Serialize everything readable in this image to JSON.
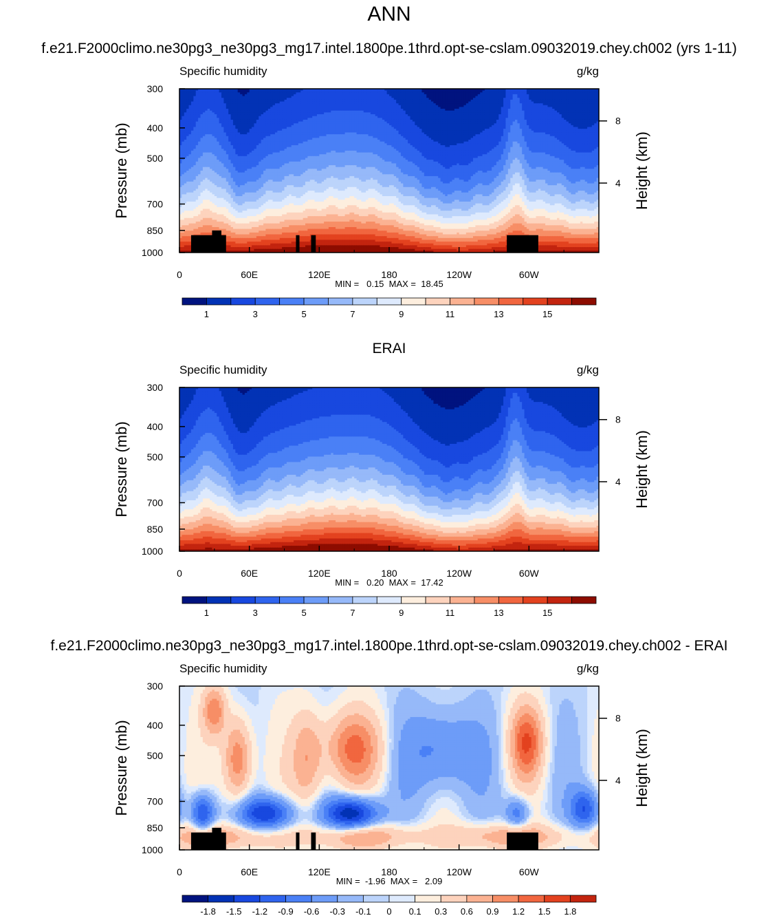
{
  "figure": {
    "title": "ANN",
    "case_title": "f.e21.F2000climo.ne30pg3_ne30pg3_mg17.intel.1800pe.1thrd.opt-se-cslam.09032019.chey.ch002 (yrs 1-11)",
    "ref_title": "ERAI",
    "diff_title": "f.e21.F2000climo.ne30pg3_ne30pg3_mg17.intel.1800pe.1thrd.opt-se-cslam.09032019.chey.ch002 - ERAI"
  },
  "chart_data": [
    {
      "type": "heatmap",
      "id": "model",
      "variable": "Specific humidity",
      "units": "g/kg",
      "ylabel": "Pressure (mb)",
      "y2label": "Height (km)",
      "ylim": [
        1000,
        300
      ],
      "y_ticks": [
        300,
        400,
        500,
        700,
        850,
        1000
      ],
      "y2_ticks": [
        "8",
        "4"
      ],
      "x_ticks": [
        "0",
        "60E",
        "120E",
        "180",
        "120W",
        "60W"
      ],
      "stats": "MIN =   0.15  MAX =  18.45",
      "min": 0.15,
      "max": 18.45,
      "colorbar_levels": [
        1,
        2,
        3,
        4,
        5,
        6,
        7,
        8,
        9,
        10,
        11,
        12,
        13,
        14,
        15,
        16
      ],
      "colorbar_labels": [
        "1",
        "3",
        "5",
        "7",
        "9",
        "11",
        "13",
        "15"
      ]
    },
    {
      "type": "heatmap",
      "id": "ref",
      "variable": "Specific humidity",
      "units": "g/kg",
      "ylabel": "Pressure (mb)",
      "y2label": "Height (km)",
      "ylim": [
        1000,
        300
      ],
      "y_ticks": [
        300,
        400,
        500,
        700,
        850,
        1000
      ],
      "y2_ticks": [
        "8",
        "4"
      ],
      "x_ticks": [
        "0",
        "60E",
        "120E",
        "180",
        "120W",
        "60W"
      ],
      "stats": "MIN =   0.20  MAX =  17.42",
      "min": 0.2,
      "max": 17.42,
      "colorbar_levels": [
        1,
        2,
        3,
        4,
        5,
        6,
        7,
        8,
        9,
        10,
        11,
        12,
        13,
        14,
        15,
        16
      ],
      "colorbar_labels": [
        "1",
        "3",
        "5",
        "7",
        "9",
        "11",
        "13",
        "15"
      ]
    },
    {
      "type": "heatmap",
      "id": "diff",
      "variable": "Specific humidity",
      "units": "g/kg",
      "ylabel": "Pressure (mb)",
      "y2label": "Height (km)",
      "ylim": [
        1000,
        300
      ],
      "y_ticks": [
        300,
        400,
        500,
        700,
        850,
        1000
      ],
      "y2_ticks": [
        "8",
        "4"
      ],
      "x_ticks": [
        "0",
        "60E",
        "120E",
        "180",
        "120W",
        "60W"
      ],
      "stats": "MIN =  -1.96  MAX =   2.09",
      "min": -1.96,
      "max": 2.09,
      "colorbar_levels": [
        -1.8,
        -1.5,
        -1.2,
        -0.9,
        -0.6,
        -0.3,
        -0.1,
        0,
        0.1,
        0.3,
        0.6,
        0.9,
        1.2,
        1.5,
        1.8
      ],
      "colorbar_labels": [
        "-1.8",
        "-1.5",
        "-1.2",
        "-0.9",
        "-0.6",
        "-0.3",
        "-0.1",
        "0",
        "0.1",
        "0.3",
        "0.6",
        "0.9",
        "1.2",
        "1.5",
        "1.8"
      ]
    }
  ],
  "colors": {
    "palette": [
      "#00137f",
      "#0232b5",
      "#1848df",
      "#2f64ee",
      "#4a80f6",
      "#6d9cf8",
      "#96b9f9",
      "#bcd4fb",
      "#deeafd",
      "#fdeede",
      "#fdd3bd",
      "#fbb292",
      "#f78e66",
      "#f1663f",
      "#e3421f",
      "#c3240f",
      "#8d0c00"
    ],
    "topography": "#000000"
  }
}
